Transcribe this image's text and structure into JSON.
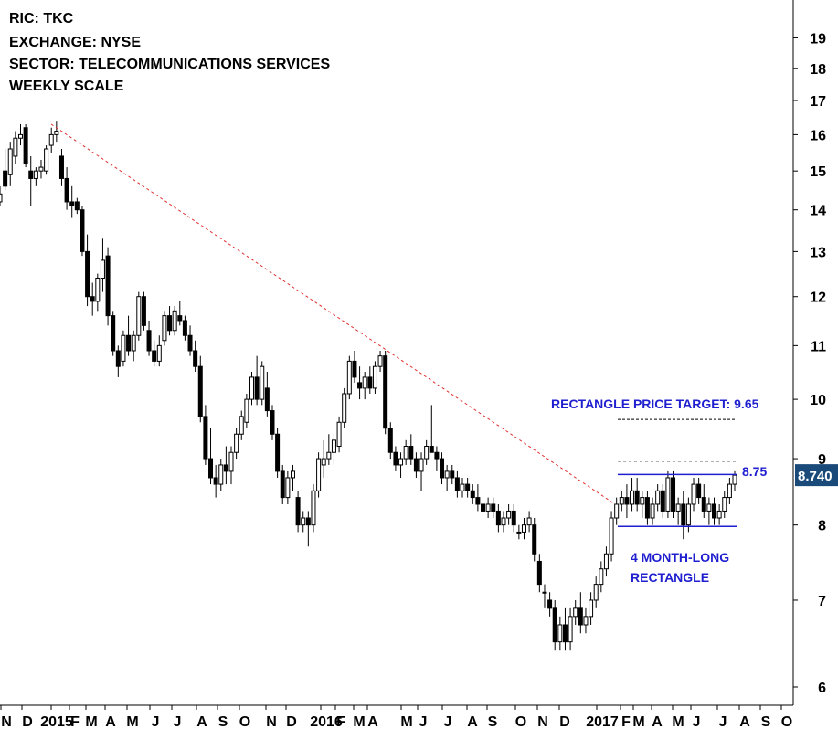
{
  "header": {
    "lines": [
      "RIC: TKC",
      "EXCHANGE: NYSE",
      "SECTOR: TELECOMMUNICATIONS SERVICES",
      "WEEKLY SCALE"
    ]
  },
  "colors": {
    "candle_down": "#000000",
    "candle_up": "#ffffff",
    "annotation_blue": "#1f1fd0",
    "trendline_red": "#e03030",
    "price_tag_bg": "#1a4a7a",
    "target_line": "#000000"
  },
  "annotations": {
    "target_label": "RECTANGLE PRICE TARGET: 9.65",
    "resistance_label": "8.75",
    "pattern_label_1": "4 MONTH-LONG",
    "pattern_label_2": "RECTANGLE",
    "last_price": "8.740"
  },
  "chart_data": {
    "type": "candlestick",
    "scale": "log",
    "ylim": [
      5.8,
      19.8
    ],
    "y_ticks": [
      6,
      7,
      8,
      9,
      10,
      11,
      12,
      13,
      14,
      15,
      16,
      17,
      18,
      19
    ],
    "x_ticks": [
      "N",
      "D",
      "2015",
      "F",
      "M",
      "A",
      "M",
      "J",
      "J",
      "A",
      "S",
      "O",
      "N",
      "D",
      "2016",
      "F",
      "M",
      "A",
      "M",
      "J",
      "J",
      "A",
      "S",
      "O",
      "N",
      "D",
      "2017",
      "F",
      "M",
      "A",
      "M",
      "J",
      "J",
      "A",
      "S",
      "O"
    ],
    "x_tick_x": [
      7,
      30,
      62,
      82,
      100,
      121,
      145,
      170,
      194,
      221,
      244,
      268,
      297,
      319,
      357,
      373,
      393,
      408,
      445,
      463,
      490,
      517,
      539,
      570,
      594,
      618,
      659,
      685,
      699,
      719,
      742,
      762,
      791,
      815,
      838,
      861
    ],
    "trendline": {
      "start": [
        16.3
      ],
      "end": [
        8.3
      ]
    },
    "rectangle": {
      "top": 8.75,
      "bottom": 7.98,
      "target": 9.65,
      "upper_dashed": 8.95
    },
    "ohlc": [
      [
        14.2,
        14.6,
        14.1,
        14.4
      ],
      [
        15.0,
        15.6,
        14.5,
        14.6
      ],
      [
        14.9,
        15.8,
        14.6,
        15.6
      ],
      [
        15.4,
        16.1,
        15.2,
        15.9
      ],
      [
        15.9,
        16.3,
        15.7,
        16.0
      ],
      [
        16.2,
        16.3,
        15.1,
        15.2
      ],
      [
        15.0,
        15.4,
        14.1,
        14.8
      ],
      [
        14.8,
        15.1,
        14.6,
        15.0
      ],
      [
        15.0,
        15.3,
        14.8,
        15.1
      ],
      [
        15.0,
        15.7,
        14.9,
        15.6
      ],
      [
        15.7,
        16.2,
        15.5,
        16.0
      ],
      [
        16.0,
        16.4,
        15.8,
        16.1
      ],
      [
        15.4,
        15.6,
        14.6,
        14.8
      ],
      [
        14.8,
        15.1,
        14.0,
        14.2
      ],
      [
        14.2,
        14.6,
        13.8,
        14.1
      ],
      [
        14.2,
        14.3,
        13.9,
        14.0
      ],
      [
        14.0,
        14.1,
        12.9,
        13.0
      ],
      [
        13.0,
        13.4,
        11.8,
        12.0
      ],
      [
        12.0,
        12.3,
        11.6,
        11.9
      ],
      [
        11.9,
        12.5,
        11.7,
        12.4
      ],
      [
        12.4,
        13.3,
        12.1,
        12.8
      ],
      [
        12.9,
        13.1,
        11.4,
        11.6
      ],
      [
        11.6,
        11.7,
        10.8,
        10.9
      ],
      [
        10.9,
        11.0,
        10.4,
        10.6
      ],
      [
        10.7,
        11.3,
        10.6,
        11.2
      ],
      [
        11.2,
        11.6,
        10.8,
        10.9
      ],
      [
        10.9,
        11.3,
        10.7,
        11.2
      ],
      [
        11.2,
        12.1,
        11.1,
        12.0
      ],
      [
        12.0,
        12.1,
        11.3,
        11.4
      ],
      [
        11.3,
        11.5,
        10.8,
        10.9
      ],
      [
        10.9,
        11.1,
        10.6,
        10.7
      ],
      [
        10.7,
        11.2,
        10.6,
        11.0
      ],
      [
        11.1,
        11.7,
        11.0,
        11.6
      ],
      [
        11.6,
        11.8,
        11.2,
        11.3
      ],
      [
        11.3,
        11.8,
        11.2,
        11.7
      ],
      [
        11.6,
        11.9,
        11.4,
        11.5
      ],
      [
        11.5,
        11.6,
        11.1,
        11.2
      ],
      [
        11.2,
        11.4,
        10.8,
        10.9
      ],
      [
        10.9,
        11.1,
        10.5,
        10.6
      ],
      [
        10.6,
        10.8,
        9.6,
        9.7
      ],
      [
        9.7,
        9.9,
        8.9,
        9.0
      ],
      [
        9.0,
        9.5,
        8.6,
        8.7
      ],
      [
        8.7,
        8.9,
        8.4,
        8.6
      ],
      [
        8.6,
        9.0,
        8.5,
        8.9
      ],
      [
        8.9,
        9.2,
        8.6,
        8.8
      ],
      [
        8.8,
        9.2,
        8.6,
        9.1
      ],
      [
        9.1,
        9.5,
        9.0,
        9.4
      ],
      [
        9.4,
        9.8,
        9.3,
        9.7
      ],
      [
        9.6,
        10.1,
        9.5,
        10.0
      ],
      [
        10.0,
        10.5,
        9.9,
        10.4
      ],
      [
        10.4,
        10.8,
        9.9,
        10.0
      ],
      [
        10.0,
        10.7,
        9.9,
        10.6
      ],
      [
        10.2,
        10.5,
        9.7,
        9.8
      ],
      [
        9.8,
        9.9,
        9.3,
        9.4
      ],
      [
        9.4,
        9.5,
        8.7,
        8.8
      ],
      [
        8.8,
        8.9,
        8.3,
        8.4
      ],
      [
        8.4,
        8.8,
        8.3,
        8.7
      ],
      [
        8.7,
        8.9,
        8.5,
        8.8
      ],
      [
        8.4,
        8.5,
        7.9,
        8.0
      ],
      [
        8.0,
        8.2,
        7.9,
        8.1
      ],
      [
        8.1,
        8.2,
        7.7,
        8.0
      ],
      [
        8.0,
        8.6,
        7.9,
        8.5
      ],
      [
        8.5,
        9.1,
        8.4,
        9.0
      ],
      [
        8.9,
        9.3,
        8.7,
        9.0
      ],
      [
        9.0,
        9.4,
        8.9,
        9.1
      ],
      [
        9.1,
        9.4,
        8.9,
        9.3
      ],
      [
        9.2,
        9.7,
        9.1,
        9.6
      ],
      [
        9.6,
        10.2,
        9.5,
        10.1
      ],
      [
        10.1,
        10.8,
        10.0,
        10.7
      ],
      [
        10.7,
        10.9,
        10.3,
        10.4
      ],
      [
        10.3,
        10.6,
        10.0,
        10.2
      ],
      [
        10.2,
        10.5,
        10.0,
        10.4
      ],
      [
        10.4,
        10.6,
        10.1,
        10.2
      ],
      [
        10.2,
        10.7,
        10.1,
        10.6
      ],
      [
        10.6,
        10.9,
        10.5,
        10.8
      ],
      [
        10.8,
        10.9,
        9.4,
        9.5
      ],
      [
        9.5,
        9.6,
        9.0,
        9.1
      ],
      [
        9.1,
        9.2,
        8.8,
        8.9
      ],
      [
        8.9,
        9.1,
        8.7,
        9.0
      ],
      [
        9.0,
        9.3,
        8.9,
        9.2
      ],
      [
        9.2,
        9.4,
        8.9,
        9.0
      ],
      [
        9.0,
        9.1,
        8.7,
        8.8
      ],
      [
        8.8,
        9.1,
        8.5,
        9.0
      ],
      [
        9.0,
        9.3,
        8.9,
        9.2
      ],
      [
        9.2,
        9.9,
        9.1,
        9.1
      ],
      [
        9.1,
        9.2,
        8.8,
        9.0
      ],
      [
        9.0,
        9.1,
        8.6,
        8.7
      ],
      [
        8.7,
        8.9,
        8.5,
        8.8
      ],
      [
        8.8,
        8.9,
        8.6,
        8.7
      ],
      [
        8.7,
        8.8,
        8.4,
        8.5
      ],
      [
        8.5,
        8.7,
        8.4,
        8.6
      ],
      [
        8.6,
        8.7,
        8.4,
        8.5
      ],
      [
        8.5,
        8.6,
        8.3,
        8.4
      ],
      [
        8.4,
        8.6,
        8.2,
        8.3
      ],
      [
        8.3,
        8.4,
        8.1,
        8.2
      ],
      [
        8.2,
        8.4,
        8.1,
        8.3
      ],
      [
        8.3,
        8.4,
        8.1,
        8.2
      ],
      [
        8.2,
        8.3,
        7.9,
        8.0
      ],
      [
        8.0,
        8.2,
        7.9,
        8.1
      ],
      [
        8.1,
        8.3,
        8.0,
        8.2
      ],
      [
        8.2,
        8.3,
        7.9,
        8.0
      ],
      [
        7.9,
        8.0,
        7.8,
        7.9
      ],
      [
        7.9,
        8.1,
        7.8,
        8.0
      ],
      [
        8.0,
        8.2,
        7.9,
        8.1
      ],
      [
        8.0,
        8.1,
        7.5,
        7.6
      ],
      [
        7.5,
        7.6,
        7.1,
        7.2
      ],
      [
        7.1,
        7.2,
        6.9,
        7.1
      ],
      [
        7.0,
        7.1,
        6.8,
        6.9
      ],
      [
        6.9,
        7.0,
        6.4,
        6.5
      ],
      [
        6.5,
        6.8,
        6.4,
        6.7
      ],
      [
        6.7,
        6.9,
        6.4,
        6.5
      ],
      [
        6.5,
        6.9,
        6.4,
        6.8
      ],
      [
        6.8,
        7.0,
        6.7,
        6.9
      ],
      [
        6.9,
        7.1,
        6.6,
        6.7
      ],
      [
        6.7,
        6.9,
        6.6,
        6.8
      ],
      [
        6.8,
        7.1,
        6.7,
        7.0
      ],
      [
        7.0,
        7.3,
        6.9,
        7.2
      ],
      [
        7.2,
        7.5,
        7.1,
        7.4
      ],
      [
        7.4,
        7.7,
        7.3,
        7.6
      ],
      [
        7.6,
        8.2,
        7.5,
        8.1
      ],
      [
        8.1,
        8.4,
        8.0,
        8.3
      ],
      [
        8.3,
        8.5,
        8.2,
        8.4
      ],
      [
        8.4,
        8.6,
        8.1,
        8.3
      ],
      [
        8.3,
        8.7,
        8.2,
        8.5
      ],
      [
        8.5,
        8.7,
        8.2,
        8.3
      ],
      [
        8.3,
        8.5,
        8.1,
        8.4
      ],
      [
        8.4,
        8.5,
        8.0,
        8.1
      ],
      [
        8.1,
        8.4,
        8.0,
        8.3
      ],
      [
        8.3,
        8.6,
        8.2,
        8.5
      ],
      [
        8.5,
        8.6,
        8.1,
        8.2
      ],
      [
        8.2,
        8.8,
        8.1,
        8.7
      ],
      [
        8.7,
        8.8,
        8.1,
        8.2
      ],
      [
        8.2,
        8.4,
        8.0,
        8.3
      ],
      [
        8.3,
        8.5,
        7.8,
        8.0
      ],
      [
        8.0,
        8.4,
        7.9,
        8.3
      ],
      [
        8.3,
        8.7,
        8.2,
        8.6
      ],
      [
        8.6,
        8.7,
        8.3,
        8.4
      ],
      [
        8.4,
        8.6,
        8.1,
        8.2
      ],
      [
        8.2,
        8.4,
        8.0,
        8.3
      ],
      [
        8.3,
        8.4,
        8.0,
        8.1
      ],
      [
        8.1,
        8.3,
        8.0,
        8.2
      ],
      [
        8.2,
        8.5,
        8.1,
        8.4
      ],
      [
        8.4,
        8.7,
        8.3,
        8.6
      ],
      [
        8.6,
        8.8,
        8.5,
        8.74
      ]
    ]
  }
}
